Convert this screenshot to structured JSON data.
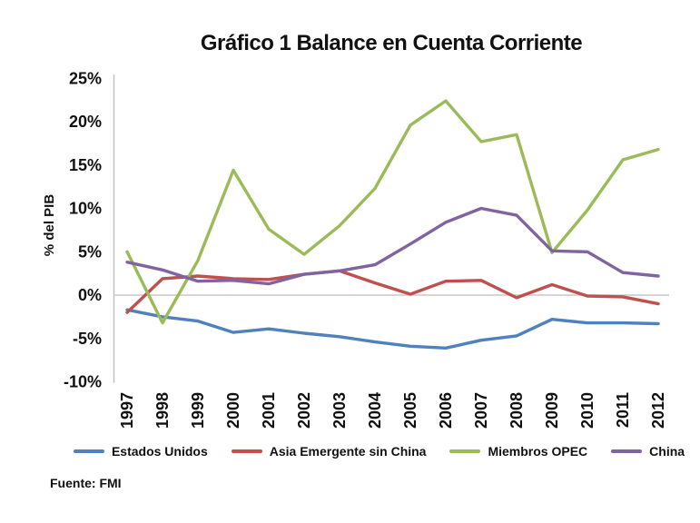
{
  "chart_data": {
    "type": "line",
    "title": "Gráfico 1 Balance en Cuenta Corriente",
    "xlabel": "",
    "ylabel": "% del PIB",
    "source": "Fuente: FMI",
    "x": [
      "1997",
      "1998",
      "1999",
      "2000",
      "2001",
      "2002",
      "2003",
      "2004",
      "2005",
      "2006",
      "2007",
      "2008",
      "2009",
      "2010",
      "2011",
      "2012"
    ],
    "ylim": [
      -10,
      25
    ],
    "y_ticks": [
      {
        "label": "25%",
        "value": 25
      },
      {
        "label": "20%",
        "value": 20
      },
      {
        "label": "15%",
        "value": 15
      },
      {
        "label": "10%",
        "value": 10
      },
      {
        "label": "5%",
        "value": 5
      },
      {
        "label": "0%",
        "value": 0
      },
      {
        "label": "-5%",
        "value": -5
      },
      {
        "label": "-10%",
        "value": -10
      }
    ],
    "grid": "zero-line-only",
    "legend_position": "bottom",
    "series": [
      {
        "name": "Estados Unidos",
        "color": "#4F81BD",
        "values": [
          -1.7,
          -2.5,
          -3.0,
          -4.3,
          -3.9,
          -4.4,
          -4.8,
          -5.4,
          -5.9,
          -6.1,
          -5.2,
          -4.7,
          -2.8,
          -3.2,
          -3.2,
          -3.3
        ]
      },
      {
        "name": "Asia Emergente sin China",
        "color": "#C0504D",
        "values": [
          -2.0,
          1.9,
          2.2,
          1.9,
          1.8,
          2.4,
          2.8,
          1.4,
          0.1,
          1.6,
          1.7,
          -0.3,
          1.2,
          -0.1,
          -0.2,
          -1.0
        ]
      },
      {
        "name": "Miembros OPEC",
        "color": "#9BBB59",
        "values": [
          5.0,
          -3.2,
          4.0,
          14.4,
          7.6,
          4.7,
          8.0,
          12.3,
          19.6,
          22.4,
          17.7,
          18.5,
          4.9,
          9.8,
          15.6,
          16.8
        ]
      },
      {
        "name": "China",
        "color": "#8064A2",
        "values": [
          3.8,
          2.9,
          1.6,
          1.7,
          1.3,
          2.4,
          2.8,
          3.5,
          5.9,
          8.4,
          10.0,
          9.2,
          5.1,
          5.0,
          2.6,
          2.2
        ]
      }
    ]
  }
}
